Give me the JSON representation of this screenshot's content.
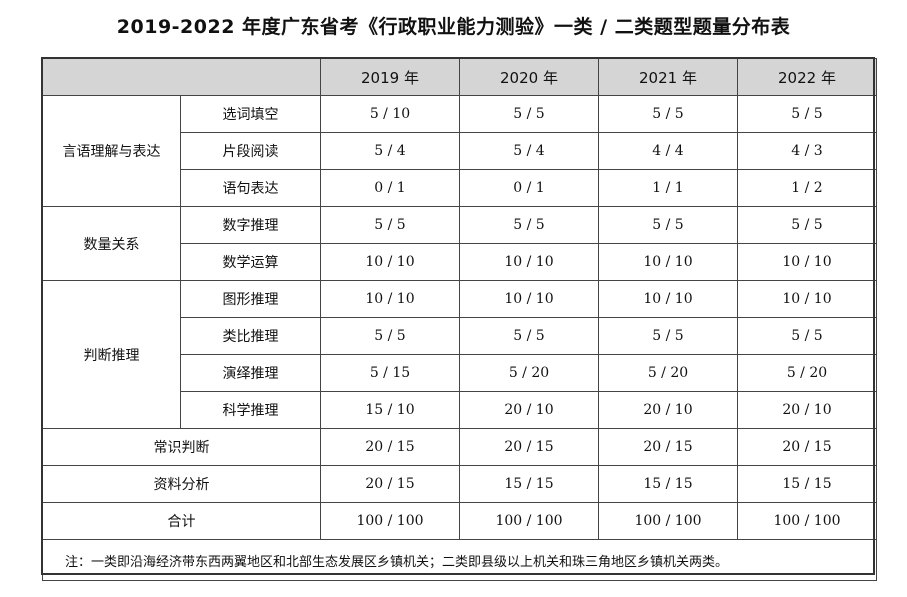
{
  "title": "2019-2022 年度广东省考《行政职业能力测验》一类 / 二类题型题量分布表",
  "years": [
    "2019 年",
    "2020 年",
    "2021 年",
    "2022 年"
  ],
  "groups": [
    {
      "name": "言语理解与表达",
      "rows": [
        {
          "sub": "选词填空",
          "values": [
            "5 / 10",
            "5 / 5",
            "5 / 5",
            "5 / 5"
          ]
        },
        {
          "sub": "片段阅读",
          "values": [
            "5 / 4",
            "5 / 4",
            "4 / 4",
            "4 / 3"
          ]
        },
        {
          "sub": "语句表达",
          "values": [
            "0 / 1",
            "0 / 1",
            "1 / 1",
            "1 / 2"
          ]
        }
      ]
    },
    {
      "name": "数量关系",
      "rows": [
        {
          "sub": "数字推理",
          "values": [
            "5 / 5",
            "5 / 5",
            "5 / 5",
            "5 / 5"
          ]
        },
        {
          "sub": "数学运算",
          "values": [
            "10 / 10",
            "10 / 10",
            "10 / 10",
            "10 / 10"
          ]
        }
      ]
    },
    {
      "name": "判断推理",
      "rows": [
        {
          "sub": "图形推理",
          "values": [
            "10 / 10",
            "10 / 10",
            "10 / 10",
            "10 / 10"
          ]
        },
        {
          "sub": "类比推理",
          "values": [
            "5 / 5",
            "5 / 5",
            "5 / 5",
            "5 / 5"
          ]
        },
        {
          "sub": "演绎推理",
          "values": [
            "5 / 15",
            "5 / 20",
            "5 / 20",
            "5 / 20"
          ]
        },
        {
          "sub": "科学推理",
          "values": [
            "15 / 10",
            "20 / 10",
            "20 / 10",
            "20 / 10"
          ]
        }
      ]
    }
  ],
  "singles": [
    {
      "name": "常识判断",
      "values": [
        "20 / 15",
        "20 / 15",
        "20 / 15",
        "20 / 15"
      ]
    },
    {
      "name": "资料分析",
      "values": [
        "20 / 15",
        "15 / 15",
        "15 / 15",
        "15 / 15"
      ]
    },
    {
      "name": "合计",
      "values": [
        "100 / 100",
        "100 / 100",
        "100 / 100",
        "100 / 100"
      ]
    }
  ],
  "note": "注：一类即沿海经济带东西两翼地区和北部生态发展区乡镇机关；二类即县级以上机关和珠三角地区乡镇机关两类。"
}
